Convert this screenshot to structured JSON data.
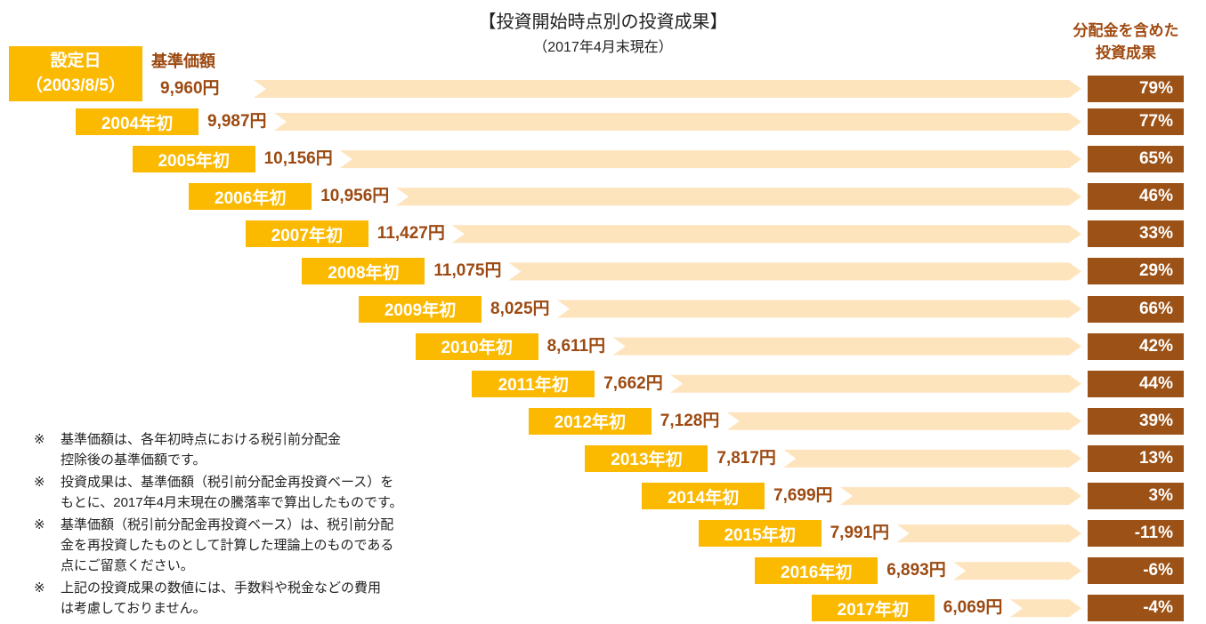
{
  "header": {
    "title": "【投資開始時点別の投資成果】",
    "subtitle": "（2017年4月末現在）",
    "result_header": [
      "分配金を含めた",
      "投資成果"
    ],
    "price_header": "基準価額"
  },
  "first_row": {
    "label": [
      "設定日",
      "（2003/8/5）"
    ],
    "price": "9,960円",
    "result": "79%"
  },
  "rows": [
    {
      "label": "2004年初",
      "price": "9,987円",
      "result": "77%"
    },
    {
      "label": "2005年初",
      "price": "10,156円",
      "result": "65%"
    },
    {
      "label": "2006年初",
      "price": "10,956円",
      "result": "46%"
    },
    {
      "label": "2007年初",
      "price": "11,427円",
      "result": "33%"
    },
    {
      "label": "2008年初",
      "price": "11,075円",
      "result": "29%"
    },
    {
      "label": "2009年初",
      "price": "8,025円",
      "result": "66%"
    },
    {
      "label": "2010年初",
      "price": "8,611円",
      "result": "42%"
    },
    {
      "label": "2011年初",
      "price": "7,662円",
      "result": "44%"
    },
    {
      "label": "2012年初",
      "price": "7,128円",
      "result": "39%"
    },
    {
      "label": "2013年初",
      "price": "7,817円",
      "result": "13%"
    },
    {
      "label": "2014年初",
      "price": "7,699円",
      "result": "3%"
    },
    {
      "label": "2015年初",
      "price": "7,991円",
      "result": "-11%"
    },
    {
      "label": "2016年初",
      "price": "6,893円",
      "result": "-6%"
    },
    {
      "label": "2017年初",
      "price": "6,069円",
      "result": "-4%"
    }
  ],
  "note_mark": "※",
  "notes": [
    [
      "基準価額は、各年初時点における税引前分配金",
      "控除後の基準価額です。"
    ],
    [
      "投資成果は、基準価額（税引前分配金再投資ベース）を",
      "もとに、2017年4月末現在の騰落率で算出したものです。"
    ],
    [
      "基準価額（税引前分配金再投資ベース）は、税引前分配",
      "金を再投資したものとして計算した理論上のものである",
      "点にご留意ください。"
    ],
    [
      "上記の投資成果の数値には、手数料や税金などの費用",
      "は考慮しておりません。"
    ]
  ]
}
